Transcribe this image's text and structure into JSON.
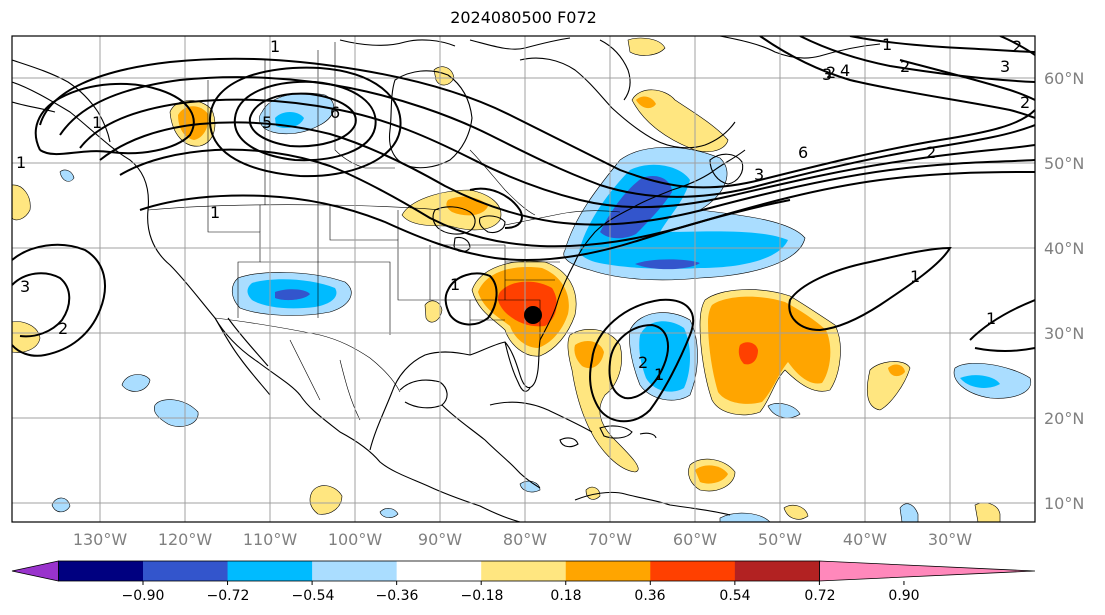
{
  "title": "2024080500 F072",
  "map": {
    "longitude_labels": [
      "130°W",
      "120°W",
      "110°W",
      "100°W",
      "90°W",
      "80°W",
      "70°W",
      "60°W",
      "50°W",
      "40°W",
      "30°W"
    ],
    "latitude_labels": [
      "60°N",
      "50°N",
      "40°N",
      "30°N",
      "20°N",
      "10°N"
    ],
    "contour_labels": [
      "1",
      "6",
      "5",
      "1",
      "3",
      "2",
      "1",
      "2",
      "1",
      "1",
      "6",
      "3",
      "1",
      "2",
      "4",
      "3",
      "2",
      "3",
      "2",
      "2",
      "1",
      "1",
      "1",
      "2"
    ],
    "marker": "black dot"
  },
  "colorbar": {
    "tick_labels": [
      "−0.90",
      "−0.72",
      "−0.54",
      "−0.36",
      "−0.18",
      "0.18",
      "0.36",
      "0.54",
      "0.72",
      "0.90"
    ],
    "colors": [
      "#9933cc",
      "#000080",
      "#3355cc",
      "#00bbff",
      "#aaddff",
      "#ffffff",
      "#ffe680",
      "#ffa500",
      "#ff4000",
      "#b22222",
      "#ff88bb"
    ]
  },
  "colors": {
    "land_outline": "#000000",
    "grid": "#a0a0a0",
    "label_gray": "#808080"
  }
}
